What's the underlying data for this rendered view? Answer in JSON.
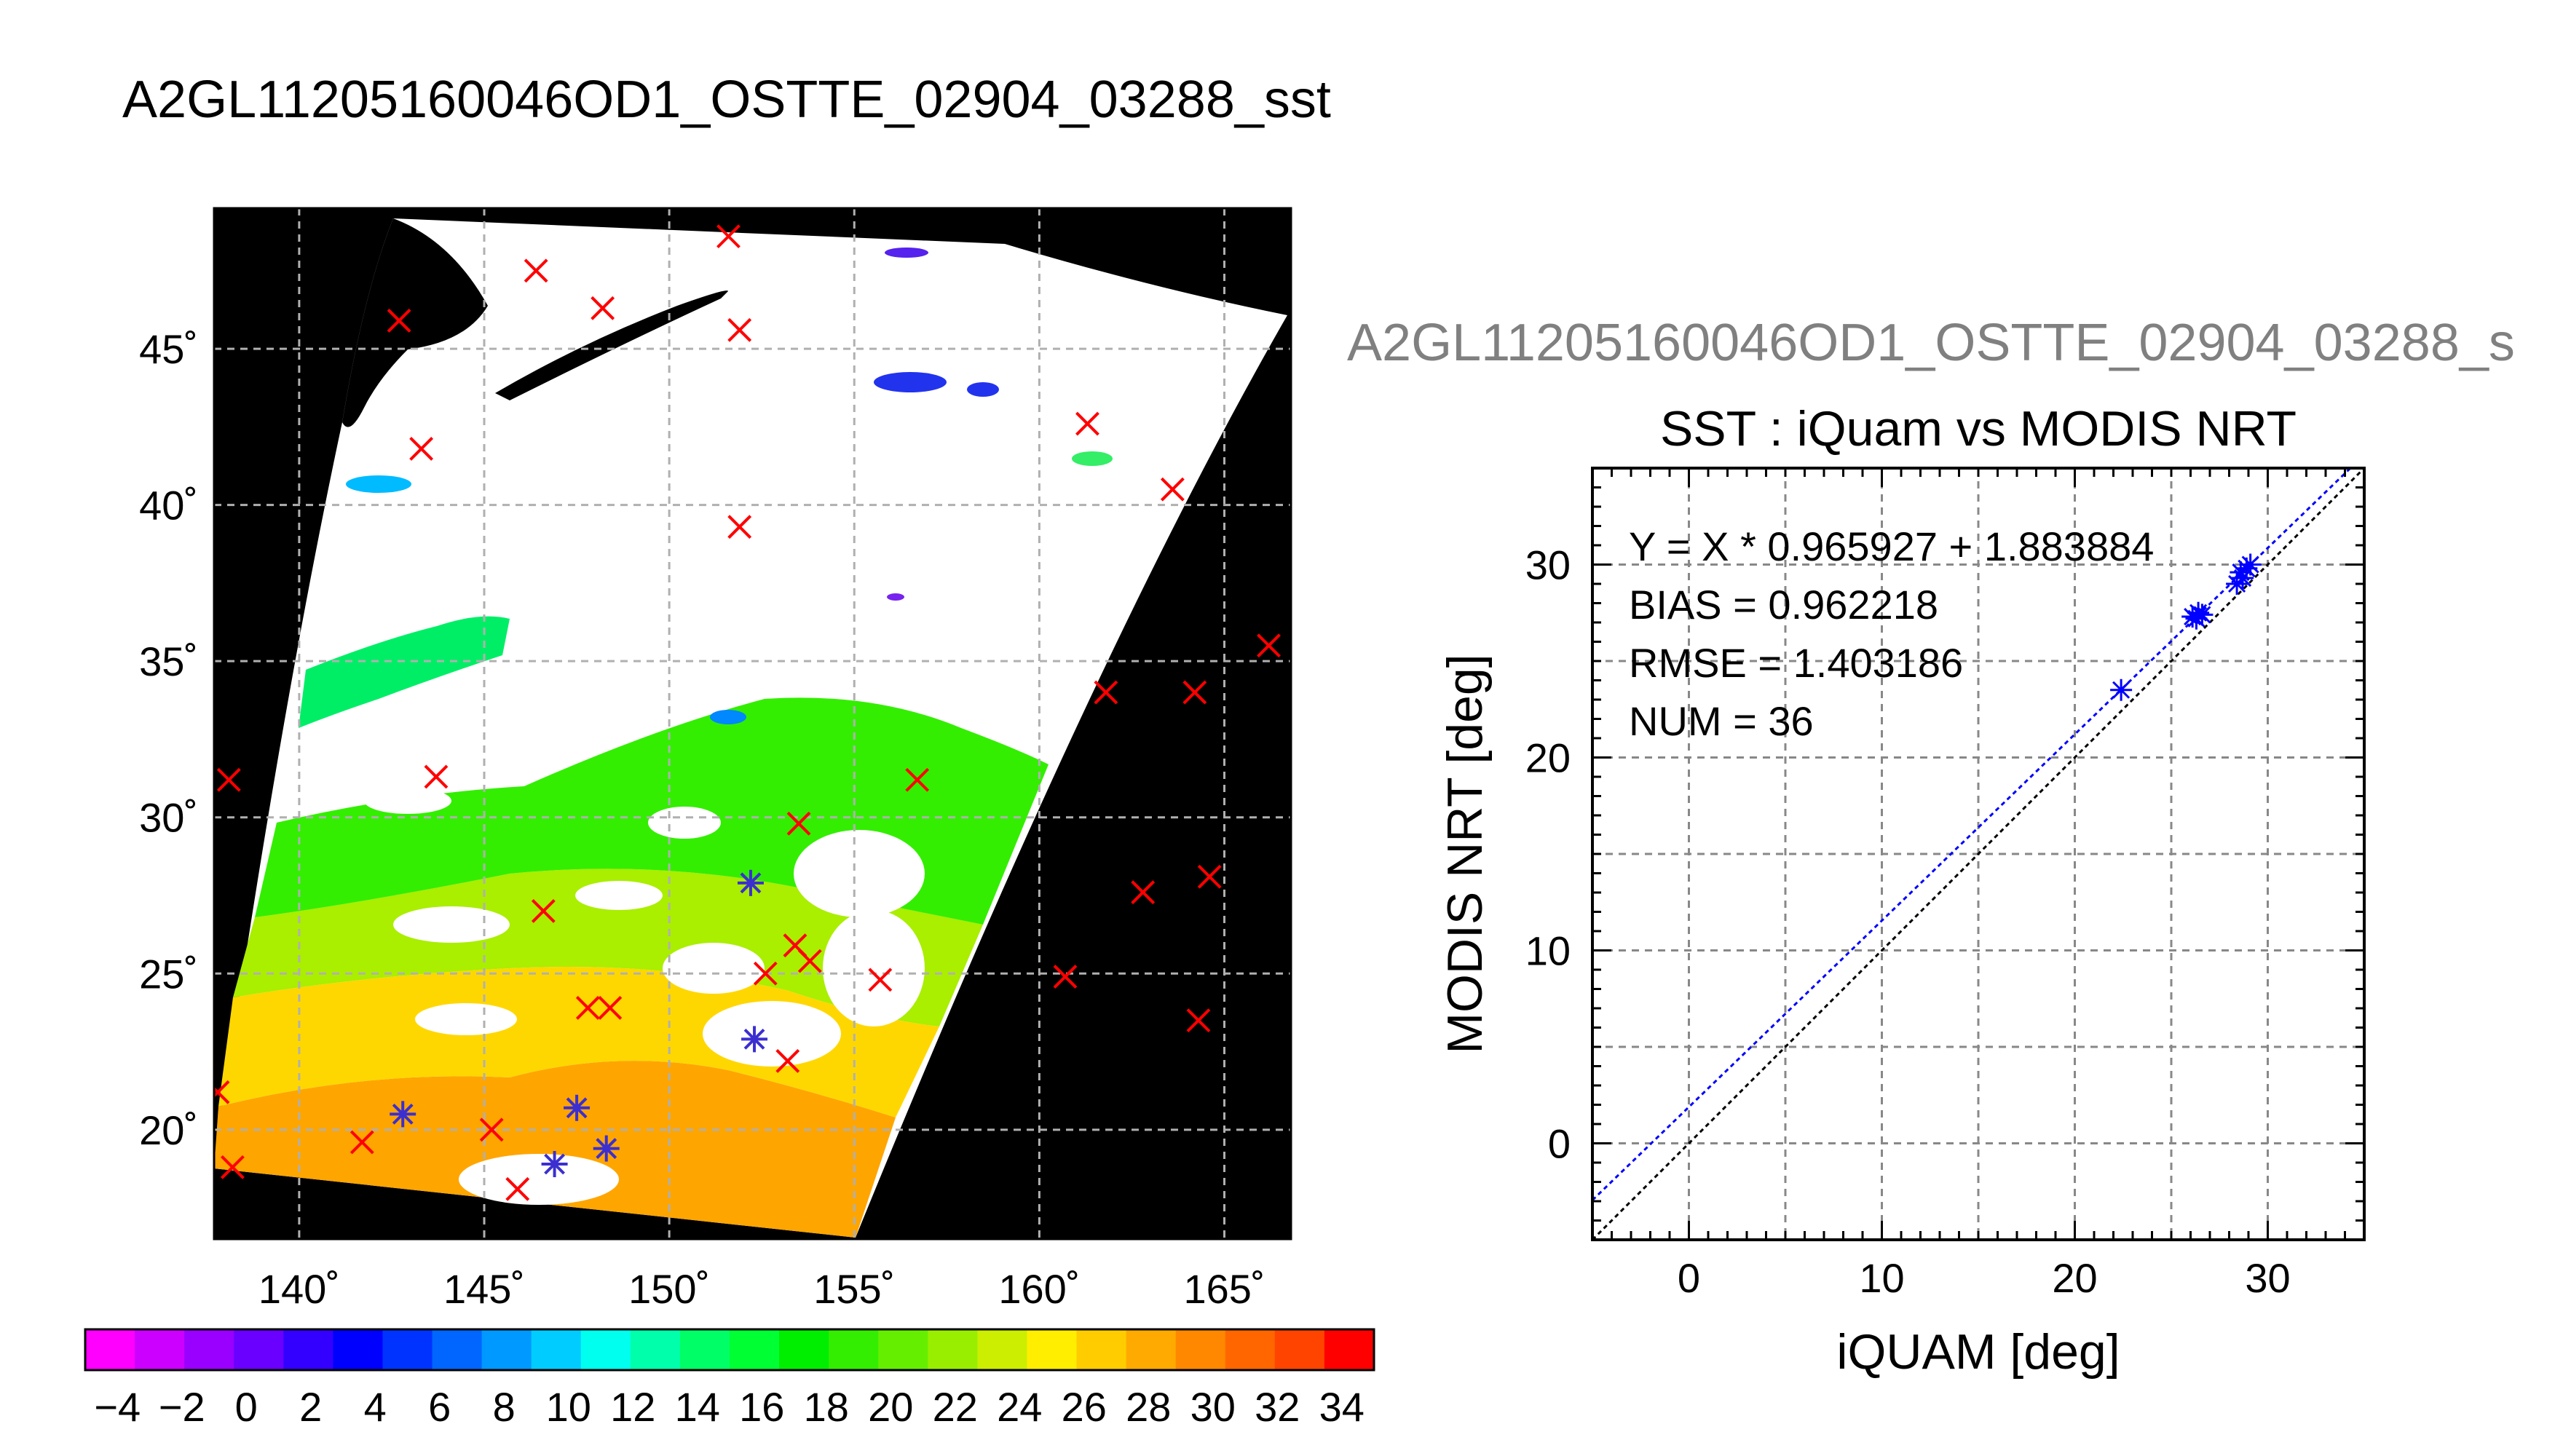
{
  "title": "A2GL11205160046OD1_OSTTE_02904_03288_sst",
  "map": {
    "lon_range": [
      137.7,
      166.8
    ],
    "lat_range": [
      16.5,
      49.5
    ],
    "lon_ticks": [
      "140˚",
      "145˚",
      "150˚",
      "155˚",
      "160˚",
      "165˚"
    ],
    "lat_ticks": [
      "20˚",
      "25˚",
      "30˚",
      "35˚",
      "40˚",
      "45˚"
    ],
    "in_situ_x_markers": [
      [
        146.4,
        47.5
      ],
      [
        142.7,
        45.9
      ],
      [
        148.2,
        46.3
      ],
      [
        151.6,
        48.6
      ],
      [
        151.9,
        45.6
      ],
      [
        143.3,
        41.8
      ],
      [
        161.3,
        42.6
      ],
      [
        163.6,
        40.5
      ],
      [
        151.9,
        39.3
      ],
      [
        166.2,
        35.5
      ],
      [
        161.8,
        34.0
      ],
      [
        164.2,
        34.0
      ],
      [
        143.7,
        31.3
      ],
      [
        138.1,
        31.2
      ],
      [
        156.7,
        31.2
      ],
      [
        153.5,
        29.8
      ],
      [
        146.6,
        27.0
      ],
      [
        162.8,
        27.6
      ],
      [
        164.6,
        28.1
      ],
      [
        153.4,
        25.9
      ],
      [
        153.8,
        25.4
      ],
      [
        152.6,
        25.0
      ],
      [
        155.7,
        24.8
      ],
      [
        160.7,
        24.9
      ],
      [
        147.8,
        23.9
      ],
      [
        148.4,
        23.9
      ],
      [
        164.3,
        23.5
      ],
      [
        153.2,
        22.2
      ],
      [
        141.7,
        19.6
      ],
      [
        145.2,
        20.0
      ],
      [
        145.9,
        18.1
      ],
      [
        138.2,
        18.8
      ],
      [
        137.8,
        21.2
      ]
    ],
    "matched_star_markers": [
      [
        152.2,
        27.9
      ],
      [
        152.3,
        22.9
      ],
      [
        142.8,
        20.5
      ],
      [
        147.5,
        20.7
      ],
      [
        148.3,
        19.4
      ],
      [
        146.9,
        18.9
      ]
    ],
    "colors": {
      "background": "#000000",
      "cloud": "#ffffff",
      "x_marker": "#ff0000",
      "star_marker": "#3b2fd0"
    }
  },
  "colorbar": {
    "min": -5,
    "max": 35,
    "tick_labels": [
      "−4",
      "−2",
      "0",
      "2",
      "4",
      "6",
      "8",
      "10",
      "12",
      "14",
      "16",
      "18",
      "20",
      "22",
      "24",
      "26",
      "28",
      "30",
      "32",
      "34"
    ],
    "colors": [
      "#ff00ff",
      "#cc00ff",
      "#9900ff",
      "#6a00ff",
      "#3300ff",
      "#0000ff",
      "#0033ff",
      "#0066ff",
      "#0099ff",
      "#00ccff",
      "#00ffee",
      "#00ffaa",
      "#00ff66",
      "#00ff33",
      "#00ee00",
      "#33ee00",
      "#66ee00",
      "#99ee00",
      "#ccee00",
      "#ffee00",
      "#ffcc00",
      "#ffaa00",
      "#ff8800",
      "#ff6600",
      "#ff4400",
      "#ff0000"
    ]
  },
  "scatter_file_label": "A2GL11205160046OD1_OSTTE_02904_03288_s",
  "chart_data": {
    "type": "scatter",
    "title": "SST : iQuam vs MODIS NRT",
    "xlabel": "iQUAM [deg]",
    "ylabel": "MODIS NRT [deg]",
    "xlim": [
      -5,
      35
    ],
    "ylim": [
      -5,
      35
    ],
    "x_ticks": [
      "0",
      "10",
      "20",
      "30"
    ],
    "y_ticks": [
      "0",
      "10",
      "20",
      "30"
    ],
    "grid": true,
    "stats": [
      "Y = X * 0.965927 + 1.883884",
      "BIAS = 0.962218",
      "RMSE = 1.403186",
      "NUM = 36"
    ],
    "fit": {
      "slope": 0.965927,
      "intercept": 1.883884
    },
    "points": [
      [
        22.4,
        23.5
      ],
      [
        26.1,
        27.3
      ],
      [
        26.4,
        27.5
      ],
      [
        26.6,
        27.4
      ],
      [
        26.3,
        27.2
      ],
      [
        28.4,
        29.0
      ],
      [
        28.7,
        29.3
      ],
      [
        28.9,
        29.8
      ],
      [
        29.1,
        30.0
      ],
      [
        28.6,
        29.6
      ]
    ],
    "colors": {
      "points": "#0000ff",
      "fit_line": "#0000ff",
      "identity_line": "#000000"
    }
  }
}
